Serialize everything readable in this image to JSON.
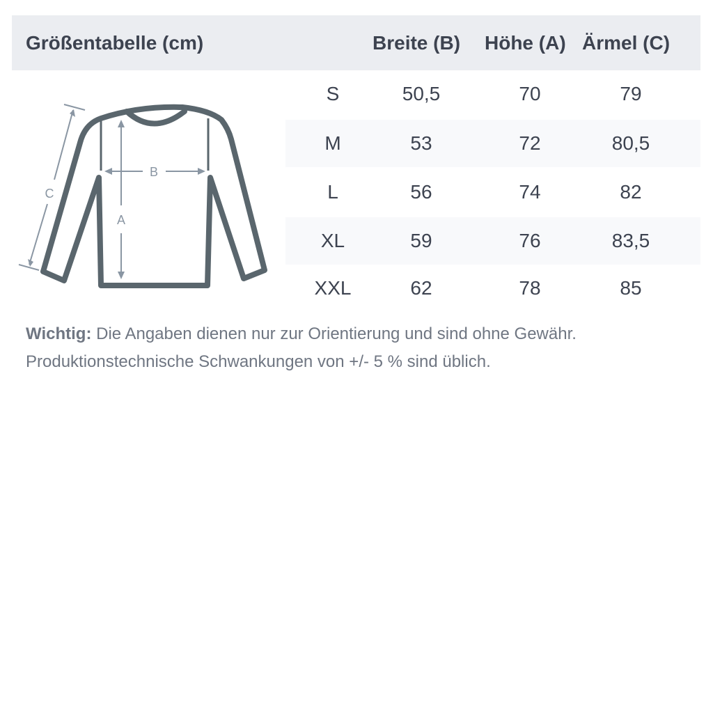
{
  "header": {
    "title": "Größentabelle (cm)",
    "columns": [
      "Breite (B)",
      "Höhe (A)",
      "Ärmel (C)"
    ]
  },
  "rows": [
    {
      "size": "S",
      "breite": "50,5",
      "hoehe": "70",
      "aermel": "79"
    },
    {
      "size": "M",
      "breite": "53",
      "hoehe": "72",
      "aermel": "80,5"
    },
    {
      "size": "L",
      "breite": "56",
      "hoehe": "74",
      "aermel": "82"
    },
    {
      "size": "XL",
      "breite": "59",
      "hoehe": "76",
      "aermel": "83,5"
    },
    {
      "size": "XXL",
      "breite": "62",
      "hoehe": "78",
      "aermel": "85"
    }
  ],
  "diagram": {
    "labels": {
      "a": "A",
      "b": "B",
      "c": "C"
    },
    "outline_color": "#5a666d",
    "arrow_color": "#8a96a3"
  },
  "note": {
    "label": "Wichtig:",
    "line1": "Die Angaben dienen nur zur Orientierung und sind ohne Gewähr.",
    "line2": "Produktionstechnische Schwankungen von +/- 5 % sind üblich."
  },
  "colors": {
    "header_bg": "#ebedf1",
    "stripe_bg": "#f8f9fb",
    "text": "#3d4350"
  }
}
